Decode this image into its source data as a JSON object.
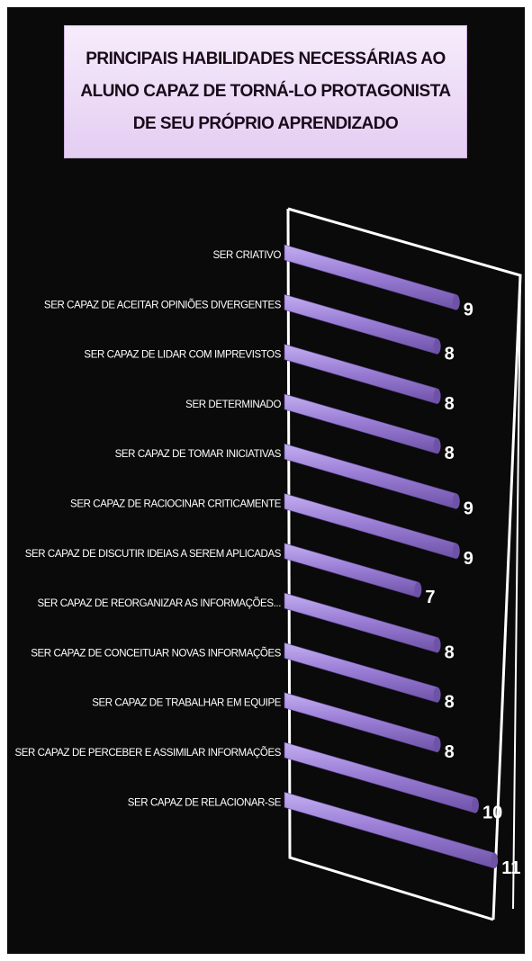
{
  "chart_data": {
    "type": "bar",
    "orientation": "horizontal",
    "title": "PRINCIPAIS HABILIDADES NECESSÁRIAS  AO ALUNO CAPAZ DE TORNÁ-LO PROTAGONISTA DE SEU PRÓPRIO APRENDIZADO",
    "categories": [
      "SER CRIATIVO",
      "SER CAPAZ DE ACEITAR OPINIÕES DIVERGENTES",
      "SER CAPAZ DE LIDAR COM IMPREVISTOS",
      "SER DETERMINADO",
      "SER CAPAZ DE TOMAR INICIATIVAS",
      "SER CAPAZ DE RACIOCINAR CRITICAMENTE",
      "SER CAPAZ DE DISCUTIR IDEIAS A SEREM APLICADAS",
      "SER CAPAZ DE REORGANIZAR AS INFORMAÇÕES...",
      "SER CAPAZ DE CONCEITUAR NOVAS INFORMAÇÕES",
      "SER CAPAZ DE TRABALHAR EM EQUIPE",
      "SER CAPAZ DE PERCEBER E ASSIMILAR INFORMAÇÕES",
      "SER CAPAZ DE RELACIONAR-SE"
    ],
    "values": [
      9,
      8,
      8,
      8,
      9,
      9,
      7,
      8,
      8,
      8,
      10,
      11
    ],
    "value_labels": [
      "9",
      "8",
      "8",
      "8",
      "9",
      "9",
      "7",
      "8",
      "8",
      "8",
      "10",
      "11"
    ],
    "xlim": [
      0,
      11
    ],
    "grid": false,
    "legend": "none",
    "colors": {
      "bar": "#9b7fd6",
      "bar_light": "#c2aef0",
      "bar_dark": "#6e52a8",
      "background": "#0a0a0a",
      "title_bg": "#ead8f5",
      "frame": "#ffffff"
    }
  }
}
